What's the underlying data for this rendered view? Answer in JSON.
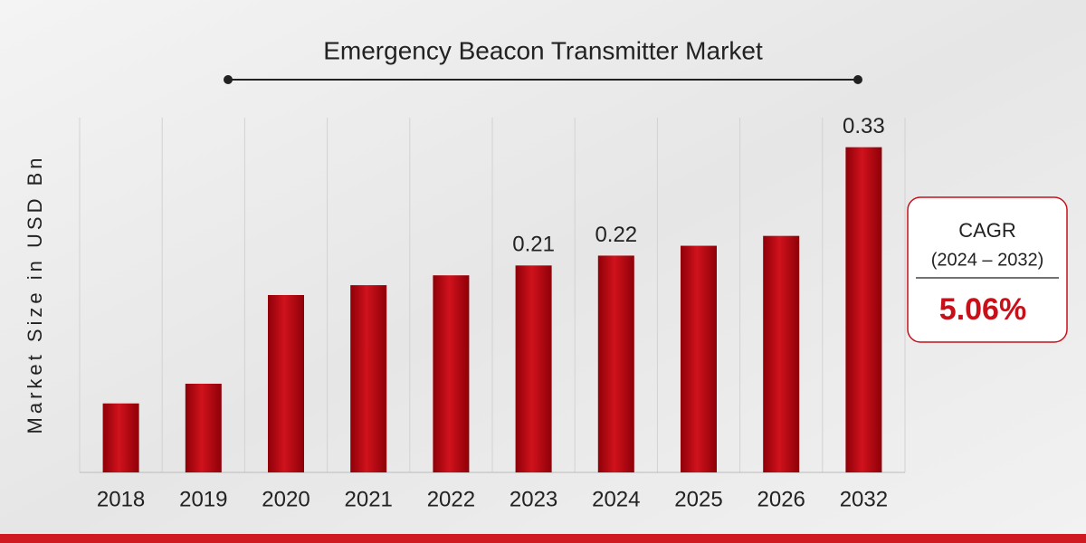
{
  "chart_data": {
    "type": "bar",
    "title": "Emergency Beacon Transmitter Market",
    "y_label": "Market Size in USD Bn",
    "categories": [
      "2018",
      "2019",
      "2020",
      "2021",
      "2022",
      "2023",
      "2024",
      "2025",
      "2026",
      "2032"
    ],
    "values": [
      0.07,
      0.09,
      0.18,
      0.19,
      0.2,
      0.21,
      0.22,
      0.23,
      0.24,
      0.33
    ],
    "value_labels": [
      null,
      null,
      null,
      null,
      null,
      "0.21",
      "0.22",
      null,
      null,
      "0.33"
    ],
    "color": "#c8101a",
    "ylim": [
      0,
      0.36
    ],
    "cagr": {
      "label": "CAGR",
      "period": "(2024 – 2032)",
      "value": "5.06%"
    }
  }
}
